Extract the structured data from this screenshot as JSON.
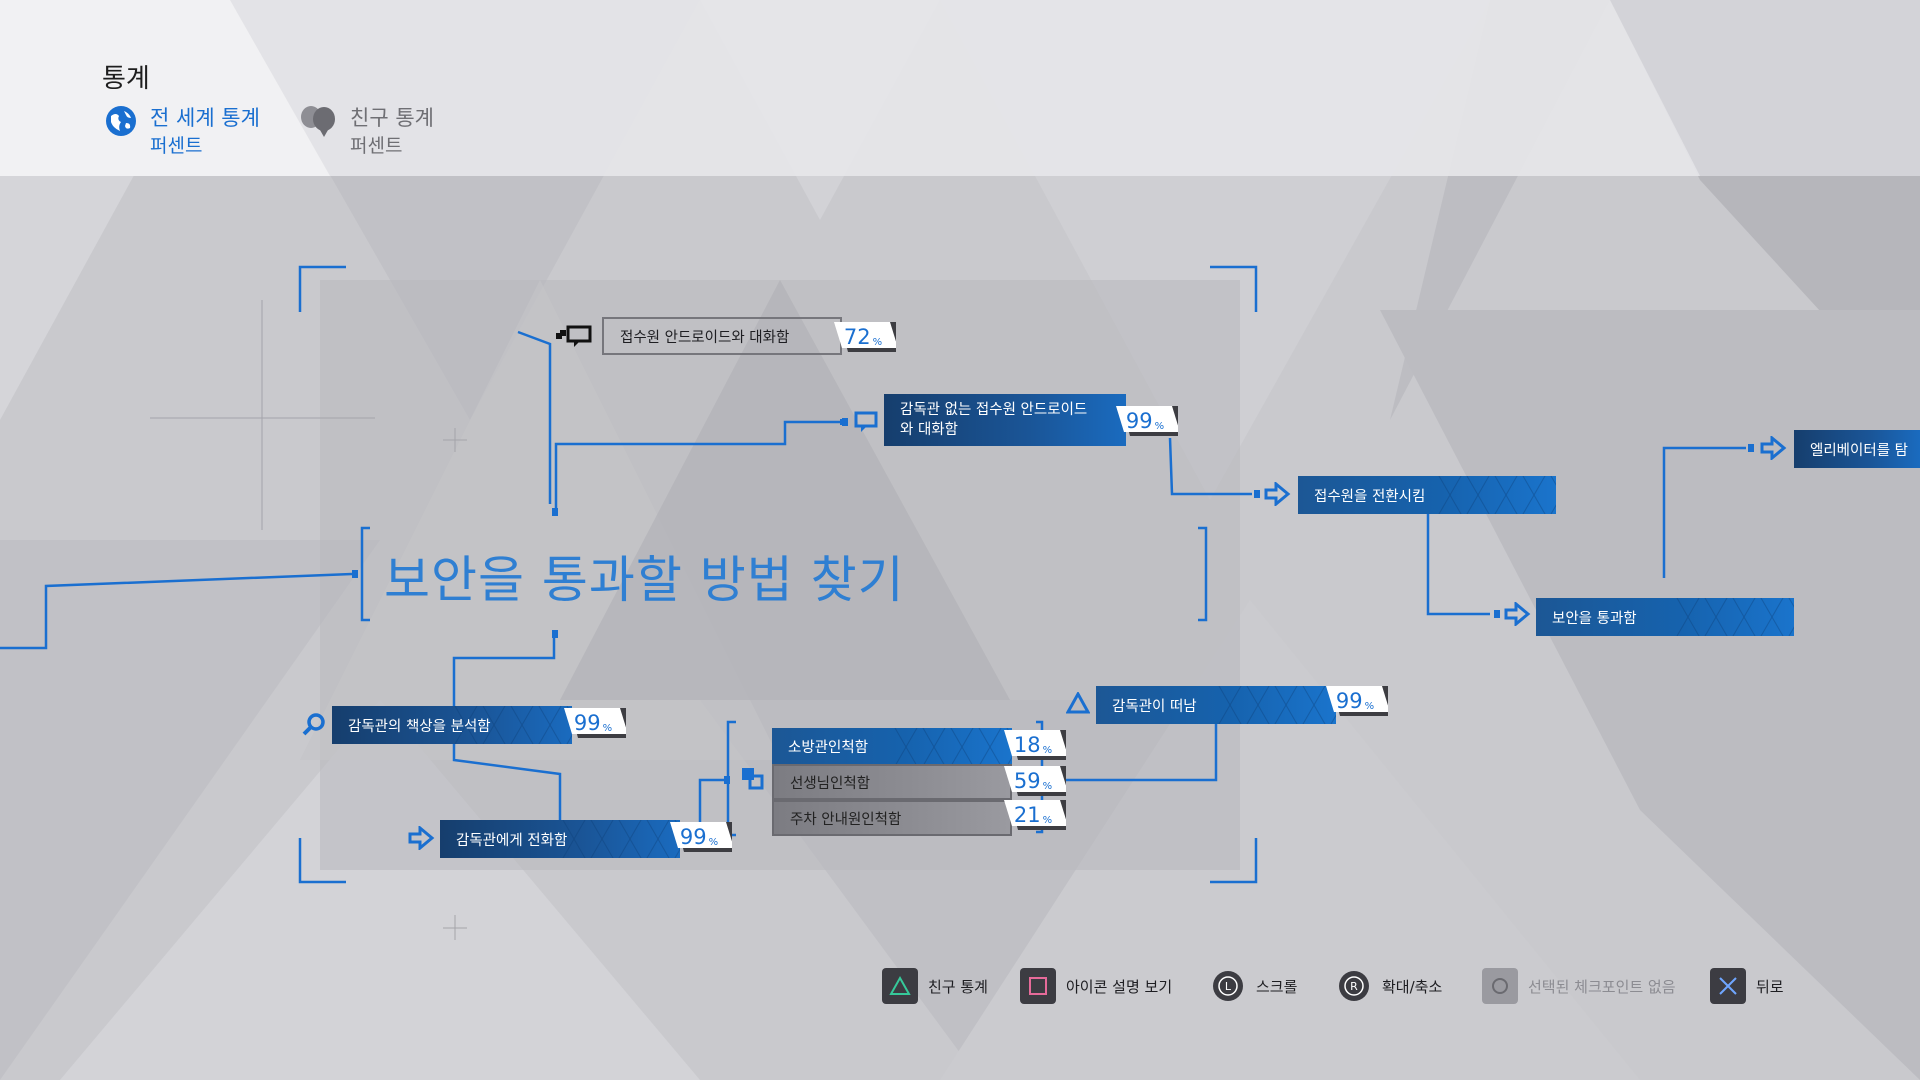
{
  "header": {
    "title": "통계",
    "tabs": [
      {
        "label": "전 세계 통계",
        "sub": "퍼센트",
        "icon": "globe-icon",
        "active": true
      },
      {
        "label": "친구 통계",
        "sub": "퍼센트",
        "icon": "friends-icon",
        "active": false
      }
    ]
  },
  "chapter": {
    "title": "보안을 통과할 방법 찾기"
  },
  "nodes": {
    "talk_receptionist": {
      "label": "접수원 안드로이드와 대화함",
      "percent": "72",
      "unit": "%"
    },
    "talk_without_supervisor": {
      "label": "감독관 없는 접수원 안드로이드와 대화함",
      "percent": "99",
      "unit": "%"
    },
    "switch_receptionist": {
      "label": "접수원을 전환시킴"
    },
    "pass_security": {
      "label": "보안을 통과함"
    },
    "ride_elevator": {
      "label": "엘리베이터를 탐"
    },
    "supervisor_left": {
      "label": "감독관이 떠남",
      "percent": "99",
      "unit": "%"
    },
    "analyze_desk": {
      "label": "감독관의 책상을 분석함",
      "percent": "99",
      "unit": "%"
    },
    "call_supervisor": {
      "label": "감독관에게 전화함",
      "percent": "99",
      "unit": "%"
    },
    "firefighter": {
      "label": "소방관인척함",
      "percent": "18",
      "unit": "%"
    },
    "teacher": {
      "label": "선생님인척함",
      "percent": "59",
      "unit": "%"
    },
    "parking": {
      "label": "주차 안내원인척함",
      "percent": "21",
      "unit": "%"
    }
  },
  "footer": {
    "buttons": [
      {
        "label": "친구 통계",
        "icon": "triangle-button-icon"
      },
      {
        "label": "아이콘 설명 보기",
        "icon": "square-button-icon"
      },
      {
        "label": "스크롤",
        "icon": "left-stick-icon"
      },
      {
        "label": "확대/축소",
        "icon": "right-stick-icon"
      },
      {
        "label": "선택된 체크포인트 없음",
        "icon": "circle-button-icon",
        "disabled": true
      },
      {
        "label": "뒤로",
        "icon": "cross-button-icon"
      }
    ]
  },
  "colors": {
    "accent": "#1a6fd0",
    "node_blue": "#1662ad",
    "background": "#c8c8cc"
  }
}
